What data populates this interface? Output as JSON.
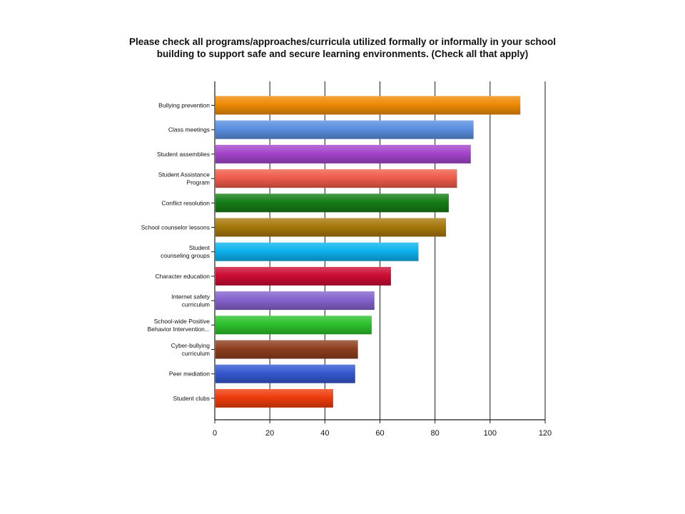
{
  "chart_data": {
    "type": "bar",
    "orientation": "horizontal",
    "title_lines": [
      "Please check all programs/approaches/curricula utilized formally or informally in your school",
      "building to support safe and secure learning environments.  (Check all that apply)"
    ],
    "categories": [
      [
        "Bullying prevention"
      ],
      [
        "Class meetings"
      ],
      [
        "Student assemblies"
      ],
      [
        "Student Assistance",
        "Program"
      ],
      [
        "Conflict resolution"
      ],
      [
        "School counselor lessons"
      ],
      [
        "Student",
        "counseling groups"
      ],
      [
        "Character education"
      ],
      [
        "Internet safety",
        "curriculum"
      ],
      [
        "School-wide Positive",
        "Behavior Intervention..."
      ],
      [
        "Cyber-bullying",
        "curriculum"
      ],
      [
        "Peer mediation"
      ],
      [
        "Student clubs"
      ]
    ],
    "values": [
      111,
      94,
      93,
      88,
      85,
      84,
      74,
      64,
      58,
      57,
      52,
      51,
      43
    ],
    "colors": [
      "#ee8a06",
      "#5a8ee0",
      "#a445cc",
      "#ee5c4a",
      "#167d16",
      "#a6780b",
      "#0cb2ee",
      "#cc0c32",
      "#8462cc",
      "#2cc02c",
      "#8e3f1e",
      "#3458d0",
      "#ee3c0c"
    ],
    "xlim": [
      0,
      120
    ],
    "xticks": [
      0,
      20,
      40,
      60,
      80,
      100,
      120
    ],
    "grid": true
  }
}
